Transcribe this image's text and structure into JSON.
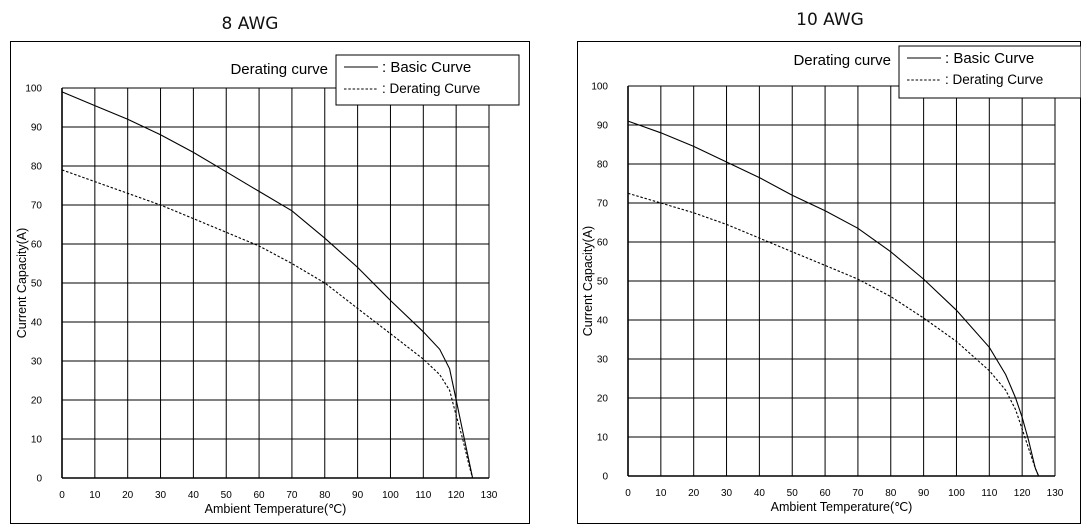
{
  "chart_data": [
    {
      "type": "line",
      "title": "8 AWG",
      "subtitle": "Derating curve",
      "xlabel": "Ambient Temperature(℃)",
      "ylabel": "Current Capacity(A)",
      "xlim": [
        0,
        130
      ],
      "ylim": [
        0,
        100
      ],
      "xticks": [
        "0",
        "10",
        "20",
        "30",
        "40",
        "50",
        "60",
        "70",
        "80",
        "90",
        "100",
        "110",
        "120",
        "130"
      ],
      "yticks": [
        "0",
        "10",
        "20",
        "30",
        "40",
        "50",
        "60",
        "70",
        "80",
        "90",
        "100"
      ],
      "grid": true,
      "legend_position": "top-right",
      "series": [
        {
          "name": ": Basic Curve",
          "style": "solid",
          "x": [
            0,
            10,
            20,
            30,
            40,
            50,
            60,
            70,
            80,
            90,
            100,
            110,
            115,
            118,
            120,
            122,
            124,
            125
          ],
          "y": [
            99,
            95.5,
            92,
            88,
            83.5,
            78.5,
            73.5,
            68.5,
            61.5,
            54,
            45.5,
            37.5,
            33,
            28,
            20,
            12,
            4,
            0
          ]
        },
        {
          "name": ": Derating Curve",
          "style": "dashed",
          "x": [
            0,
            10,
            20,
            30,
            40,
            50,
            60,
            70,
            80,
            90,
            100,
            110,
            115,
            118,
            120,
            122,
            124,
            125
          ],
          "y": [
            79,
            76,
            73,
            70,
            66.5,
            63,
            59.5,
            55,
            50,
            43.5,
            37,
            30.5,
            26.5,
            22.5,
            16,
            10,
            3,
            0
          ]
        }
      ]
    },
    {
      "type": "line",
      "title": "10 AWG",
      "subtitle": "Derating curve",
      "xlabel": "Ambient Temperature(℃)",
      "ylabel": "Current Capacity(A)",
      "xlim": [
        0,
        130
      ],
      "ylim": [
        0,
        100
      ],
      "xticks": [
        "0",
        "10",
        "20",
        "30",
        "40",
        "50",
        "60",
        "70",
        "80",
        "90",
        "100",
        "110",
        "120",
        "130"
      ],
      "yticks": [
        "0",
        "10",
        "20",
        "30",
        "40",
        "50",
        "60",
        "70",
        "80",
        "90",
        "100"
      ],
      "grid": true,
      "legend_position": "top-right",
      "series": [
        {
          "name": ": Basic Curve",
          "style": "solid",
          "x": [
            0,
            10,
            20,
            30,
            40,
            50,
            60,
            70,
            80,
            90,
            100,
            110,
            115,
            118,
            120,
            122,
            124,
            125
          ],
          "y": [
            91,
            88,
            84.5,
            80.5,
            76.5,
            72,
            68,
            63.5,
            57.5,
            50.5,
            42.5,
            33,
            26,
            20,
            15,
            9,
            2,
            0
          ]
        },
        {
          "name": ": Derating Curve",
          "style": "dashed",
          "x": [
            0,
            10,
            20,
            30,
            40,
            50,
            60,
            70,
            80,
            90,
            100,
            110,
            115,
            118,
            120,
            122,
            124,
            125
          ],
          "y": [
            72.5,
            70,
            67.5,
            64.5,
            61,
            57.5,
            54,
            50.5,
            46,
            40.5,
            34.5,
            27,
            22,
            17,
            12,
            7,
            2,
            0
          ]
        }
      ]
    }
  ]
}
